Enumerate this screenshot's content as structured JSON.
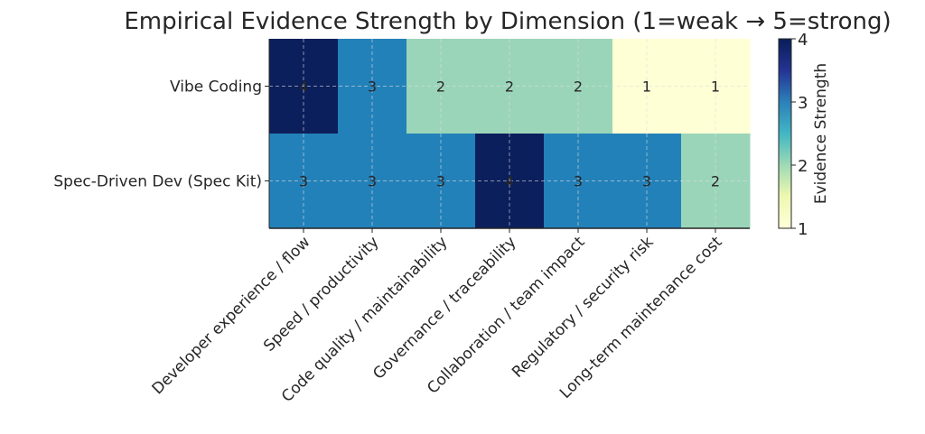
{
  "chart_data": {
    "type": "heatmap",
    "title": "Empirical Evidence Strength by Dimension (1=weak → 5=strong)",
    "rows": [
      "Vibe Coding",
      "Spec-Driven Dev (Spec Kit)"
    ],
    "columns": [
      "Developer experience / flow",
      "Speed / productivity",
      "Code quality / maintainability",
      "Governance / traceability",
      "Collaboration / team impact",
      "Regulatory / security risk",
      "Long-term maintenance cost"
    ],
    "values": [
      [
        4,
        3,
        2,
        2,
        2,
        1,
        1
      ],
      [
        3,
        3,
        3,
        4,
        3,
        3,
        2
      ]
    ],
    "colormap": "YlGnBu",
    "vmin": 1,
    "vmax": 4,
    "colorbar": {
      "label": "Evidence Strength",
      "ticks": [
        "1",
        "2",
        "3",
        "4"
      ]
    },
    "grid": true,
    "colors": {
      "1": "#ffffd6",
      "2": "#9ad5b9",
      "3": "#2381b9",
      "4": "#0b1f5c"
    }
  }
}
